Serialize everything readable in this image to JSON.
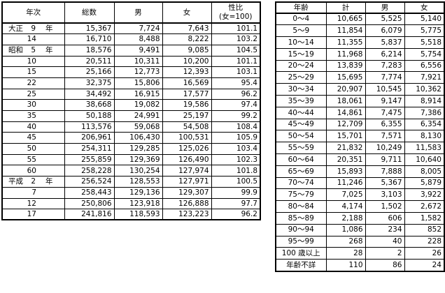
{
  "left_table": {
    "headers": [
      "年次",
      "総数",
      "男",
      "女",
      "性比",
      "(女=100)"
    ],
    "rows": [
      {
        "era": "大正",
        "year": "9",
        "unit": "年",
        "total": "15,367",
        "male": "7,724",
        "female": "7,643",
        "ratio": "101.1"
      },
      {
        "era": "",
        "year": "14",
        "unit": "",
        "total": "16,710",
        "male": "8,488",
        "female": "8,222",
        "ratio": "103.2"
      },
      {
        "era": "昭和",
        "year": "5",
        "unit": "年",
        "total": "18,576",
        "male": "9,491",
        "female": "9,085",
        "ratio": "104.5"
      },
      {
        "era": "",
        "year": "10",
        "unit": "",
        "total": "20,511",
        "male": "10,311",
        "female": "10,200",
        "ratio": "101.1"
      },
      {
        "era": "",
        "year": "15",
        "unit": "",
        "total": "25,166",
        "male": "12,773",
        "female": "12,393",
        "ratio": "103.1"
      },
      {
        "era": "",
        "year": "22",
        "unit": "",
        "total": "32,375",
        "male": "15,806",
        "female": "16,569",
        "ratio": "95.4"
      },
      {
        "era": "",
        "year": "25",
        "unit": "",
        "total": "34,492",
        "male": "16,915",
        "female": "17,577",
        "ratio": "96.2"
      },
      {
        "era": "",
        "year": "30",
        "unit": "",
        "total": "38,668",
        "male": "19,082",
        "female": "19,586",
        "ratio": "97.4"
      },
      {
        "era": "",
        "year": "35",
        "unit": "",
        "total": "50,188",
        "male": "24,991",
        "female": "25,197",
        "ratio": "99.2"
      },
      {
        "era": "",
        "year": "40",
        "unit": "",
        "total": "113,576",
        "male": "59,068",
        "female": "54,508",
        "ratio": "108.4"
      },
      {
        "era": "",
        "year": "45",
        "unit": "",
        "total": "206,961",
        "male": "106,430",
        "female": "100,531",
        "ratio": "105.9"
      },
      {
        "era": "",
        "year": "50",
        "unit": "",
        "total": "254,311",
        "male": "129,285",
        "female": "125,026",
        "ratio": "103.4"
      },
      {
        "era": "",
        "year": "55",
        "unit": "",
        "total": "255,859",
        "male": "129,369",
        "female": "126,490",
        "ratio": "102.3"
      },
      {
        "era": "",
        "year": "60",
        "unit": "",
        "total": "258,228",
        "male": "130,254",
        "female": "127,974",
        "ratio": "101.8"
      },
      {
        "era": "平成",
        "year": "2",
        "unit": "年",
        "total": "256,524",
        "male": "128,553",
        "female": "127,971",
        "ratio": "100.5"
      },
      {
        "era": "",
        "year": "7",
        "unit": "",
        "total": "258,443",
        "male": "129,136",
        "female": "129,307",
        "ratio": "99.9"
      },
      {
        "era": "",
        "year": "12",
        "unit": "",
        "total": "250,806",
        "male": "123,918",
        "female": "126,888",
        "ratio": "97.7"
      },
      {
        "era": "",
        "year": "17",
        "unit": "",
        "total": "241,816",
        "male": "118,593",
        "female": "123,223",
        "ratio": "96.2"
      }
    ]
  },
  "right_table": {
    "headers": [
      "年齢",
      "計",
      "男",
      "女"
    ],
    "rows": [
      {
        "age": "0～4",
        "total": "10,665",
        "male": "5,525",
        "female": "5,140"
      },
      {
        "age": "5～9",
        "total": "11,854",
        "male": "6,079",
        "female": "5,775"
      },
      {
        "age": "10～14",
        "total": "11,355",
        "male": "5,837",
        "female": "5,518"
      },
      {
        "age": "15～19",
        "total": "11,968",
        "male": "6,214",
        "female": "5,754"
      },
      {
        "age": "20～24",
        "total": "13,839",
        "male": "7,283",
        "female": "6,556"
      },
      {
        "age": "25～29",
        "total": "15,695",
        "male": "7,774",
        "female": "7,921"
      },
      {
        "age": "30～34",
        "total": "20,907",
        "male": "10,545",
        "female": "10,362"
      },
      {
        "age": "35～39",
        "total": "18,061",
        "male": "9,147",
        "female": "8,914"
      },
      {
        "age": "40～44",
        "total": "14,861",
        "male": "7,475",
        "female": "7,386"
      },
      {
        "age": "45～49",
        "total": "12,709",
        "male": "6,355",
        "female": "6,354"
      },
      {
        "age": "50～54",
        "total": "15,701",
        "male": "7,571",
        "female": "8,130"
      },
      {
        "age": "55～59",
        "total": "21,832",
        "male": "10,249",
        "female": "11,583"
      },
      {
        "age": "60～64",
        "total": "20,351",
        "male": "9,711",
        "female": "10,640"
      },
      {
        "age": "65～69",
        "total": "15,893",
        "male": "7,888",
        "female": "8,005"
      },
      {
        "age": "70～74",
        "total": "11,246",
        "male": "5,367",
        "female": "5,879"
      },
      {
        "age": "75～79",
        "total": "7,025",
        "male": "3,103",
        "female": "3,922"
      },
      {
        "age": "80～84",
        "total": "4,174",
        "male": "1,502",
        "female": "2,672"
      },
      {
        "age": "85～89",
        "total": "2,188",
        "male": "606",
        "female": "1,582"
      },
      {
        "age": "90～94",
        "total": "1,086",
        "male": "234",
        "female": "852"
      },
      {
        "age": "95～99",
        "total": "268",
        "male": "40",
        "female": "228"
      },
      {
        "age": "100 歳以上",
        "total": "28",
        "male": "2",
        "female": "26"
      },
      {
        "age": "年齢不詳",
        "total": "110",
        "male": "86",
        "female": "24"
      }
    ]
  }
}
